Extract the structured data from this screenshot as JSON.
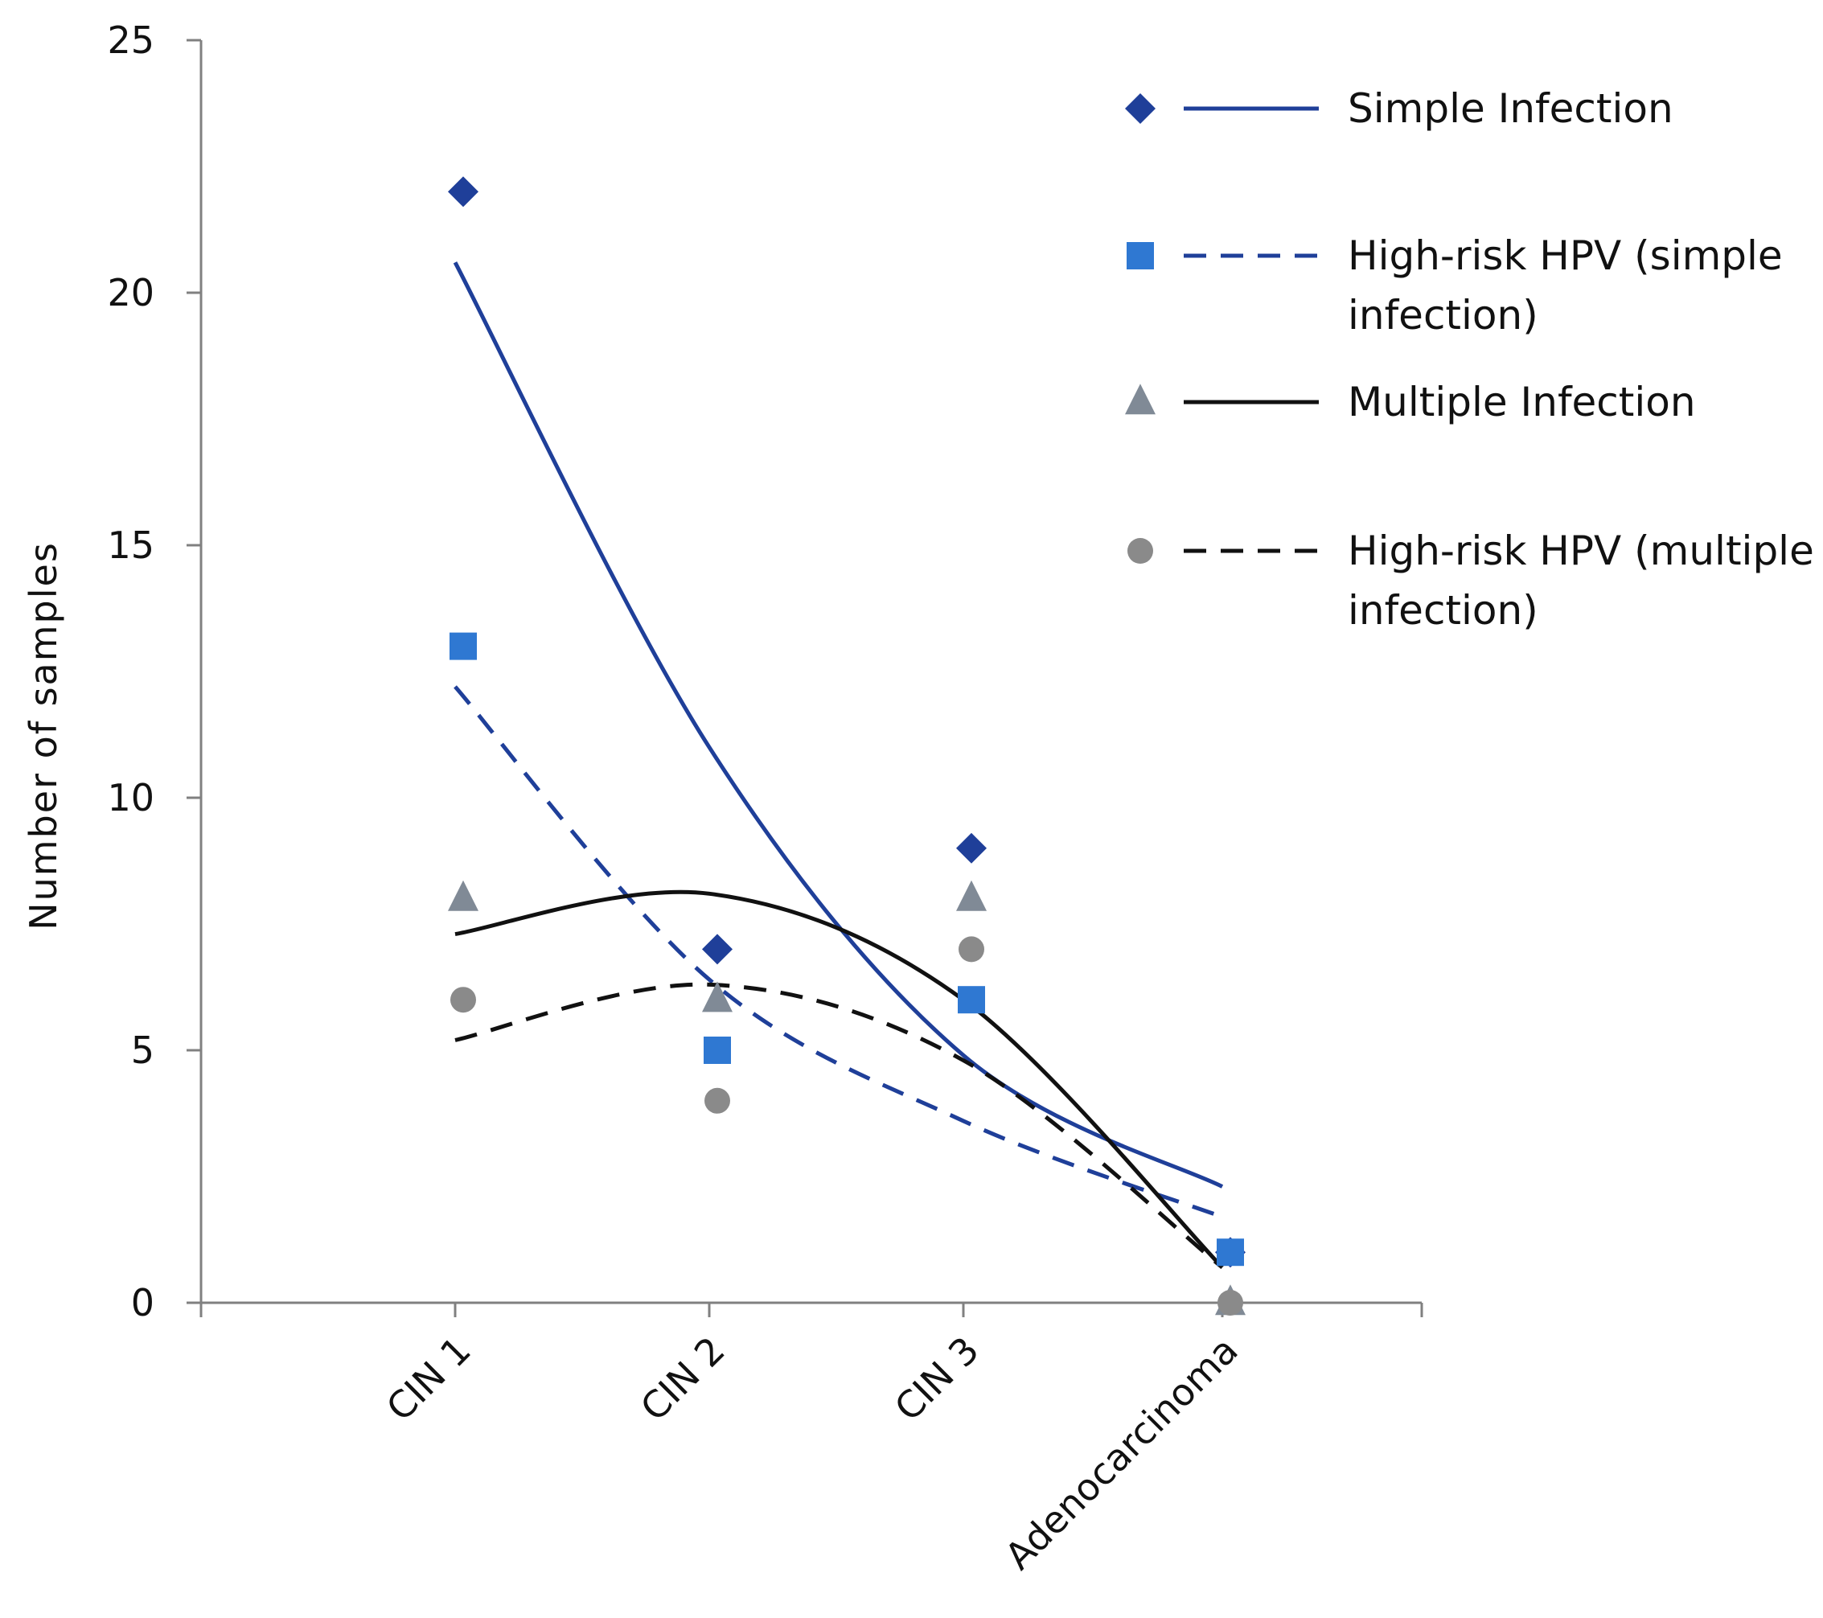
{
  "chart_data": {
    "type": "scatter",
    "title": "",
    "xlabel": "",
    "ylabel": "Number of samples",
    "ylim": [
      0,
      25
    ],
    "yticks": [
      0,
      5,
      10,
      15,
      20,
      25
    ],
    "ytick_labels": [
      "0",
      "5",
      "10",
      "15",
      "20",
      "25"
    ],
    "categories": [
      "CIN 1",
      "CIN 2",
      "CIN 3",
      "Adenocarcinoma"
    ],
    "grid": false,
    "legend_position": "top-right",
    "series": [
      {
        "name": "Simple Infection",
        "marker": "diamond",
        "marker_color": "#1f3f99",
        "line_color": "#1f3f99",
        "line_style": "solid",
        "values": [
          22,
          7,
          9,
          1
        ],
        "trend": [
          20.6,
          11.0,
          4.9,
          2.3
        ]
      },
      {
        "name": "High-risk HPV (simple infection)",
        "legend_lines": [
          "High-risk HPV (simple",
          "infection)"
        ],
        "marker": "square",
        "marker_color": "#2f78d2",
        "line_color": "#1f3f99",
        "line_style": "dashed",
        "values": [
          13,
          5,
          6,
          1
        ],
        "trend": [
          12.2,
          6.4,
          3.6,
          1.7
        ]
      },
      {
        "name": "Multiple Infection",
        "marker": "triangle",
        "marker_color": "#808a96",
        "line_color": "#111111",
        "line_style": "solid",
        "values": [
          8,
          6,
          8,
          0
        ],
        "trend": [
          7.3,
          8.1,
          6.0,
          0.7
        ]
      },
      {
        "name": "High-risk HPV (multiple infection)",
        "legend_lines": [
          "High-risk HPV (multiple",
          "infection)"
        ],
        "marker": "circle",
        "marker_color": "#8a8a8a",
        "line_color": "#111111",
        "line_style": "dashed",
        "values": [
          6,
          4,
          7,
          0
        ],
        "trend": [
          5.2,
          6.3,
          4.8,
          0.7
        ]
      }
    ]
  }
}
